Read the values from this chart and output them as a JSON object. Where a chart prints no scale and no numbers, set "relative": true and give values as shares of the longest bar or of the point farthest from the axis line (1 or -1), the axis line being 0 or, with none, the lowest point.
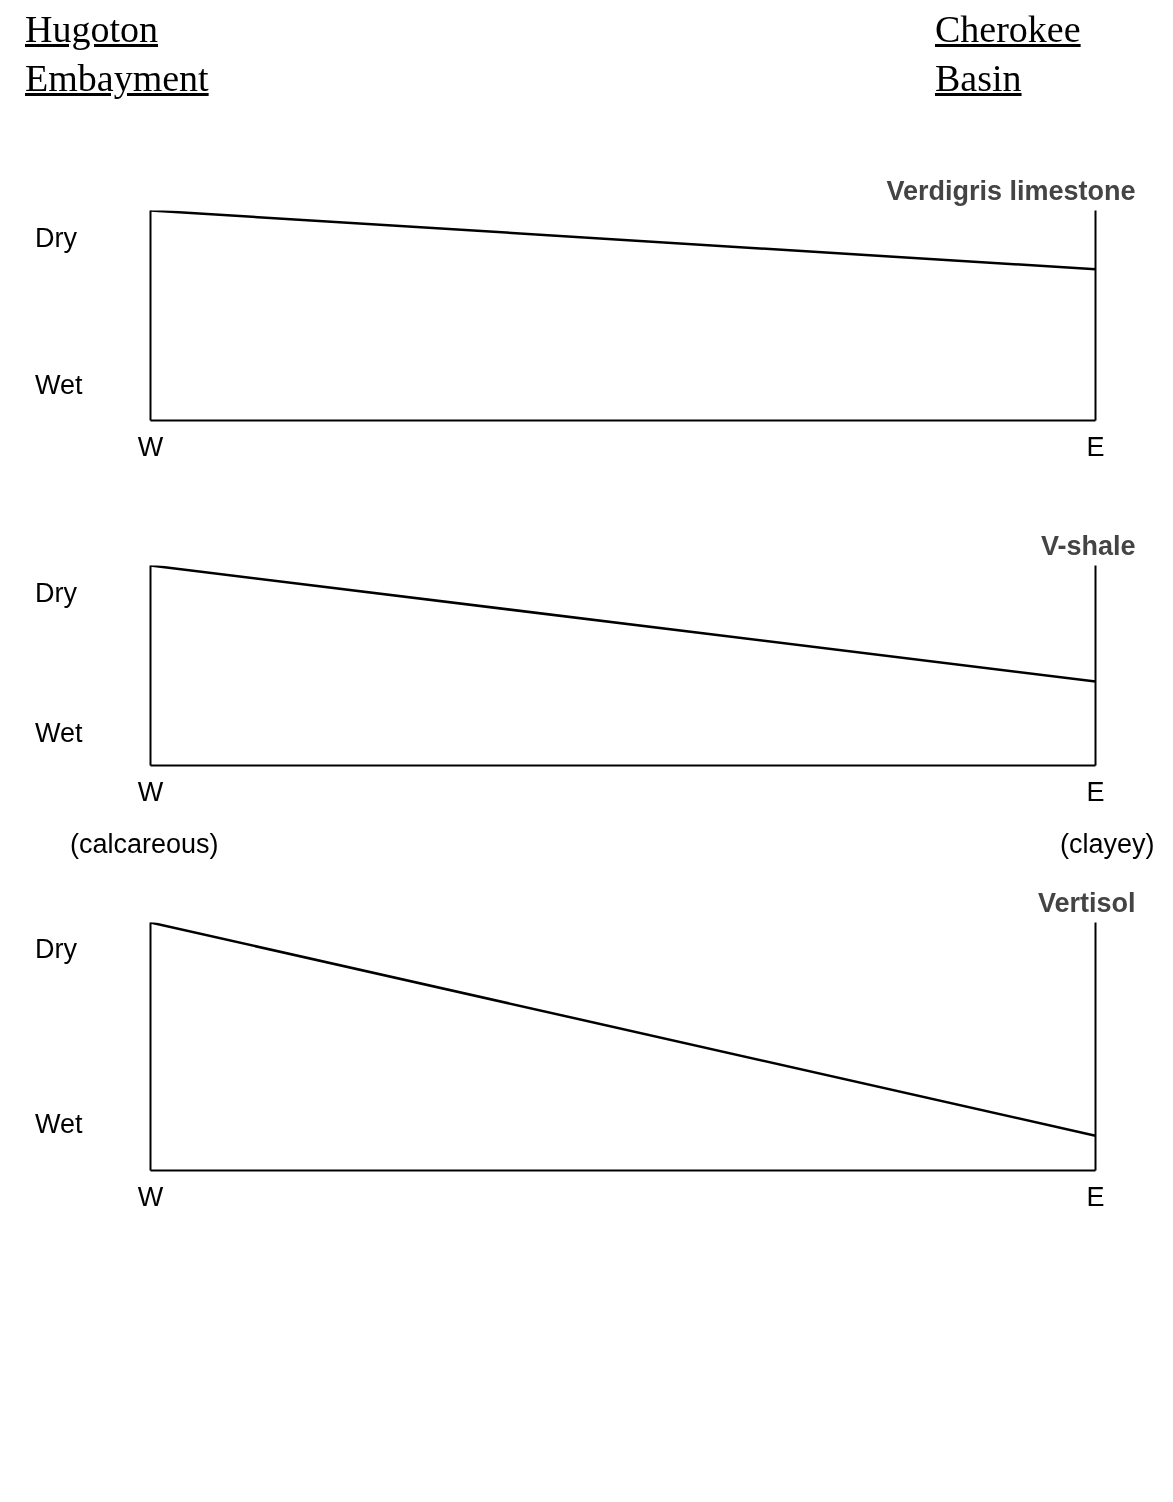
{
  "chart_data": [
    {
      "type": "line",
      "title": "Verdigris limestone",
      "annotations": [
        "Hugoton Embayment",
        "Cherokee Basin",
        "Dry",
        "Wet"
      ],
      "relative": true,
      "categories": [
        "W",
        "E"
      ],
      "series": [
        {
          "color": "#000000",
          "values": [
            1,
            0.72
          ]
        }
      ]
    },
    {
      "type": "line",
      "title": "V-shale",
      "annotations": [
        "Dry",
        "Wet"
      ],
      "relative": true,
      "categories": [
        "W",
        "E"
      ],
      "series": [
        {
          "color": "#000000",
          "values": [
            1,
            0.42
          ]
        }
      ]
    },
    {
      "type": "line",
      "title": "Vertisol",
      "annotations": [
        "(calcareous)",
        "(clayey)",
        "Dry",
        "Wet"
      ],
      "relative": true,
      "categories": [
        "W",
        "E"
      ],
      "series": [
        {
          "color": "#000000",
          "values": [
            1,
            0.14
          ]
        }
      ]
    }
  ]
}
